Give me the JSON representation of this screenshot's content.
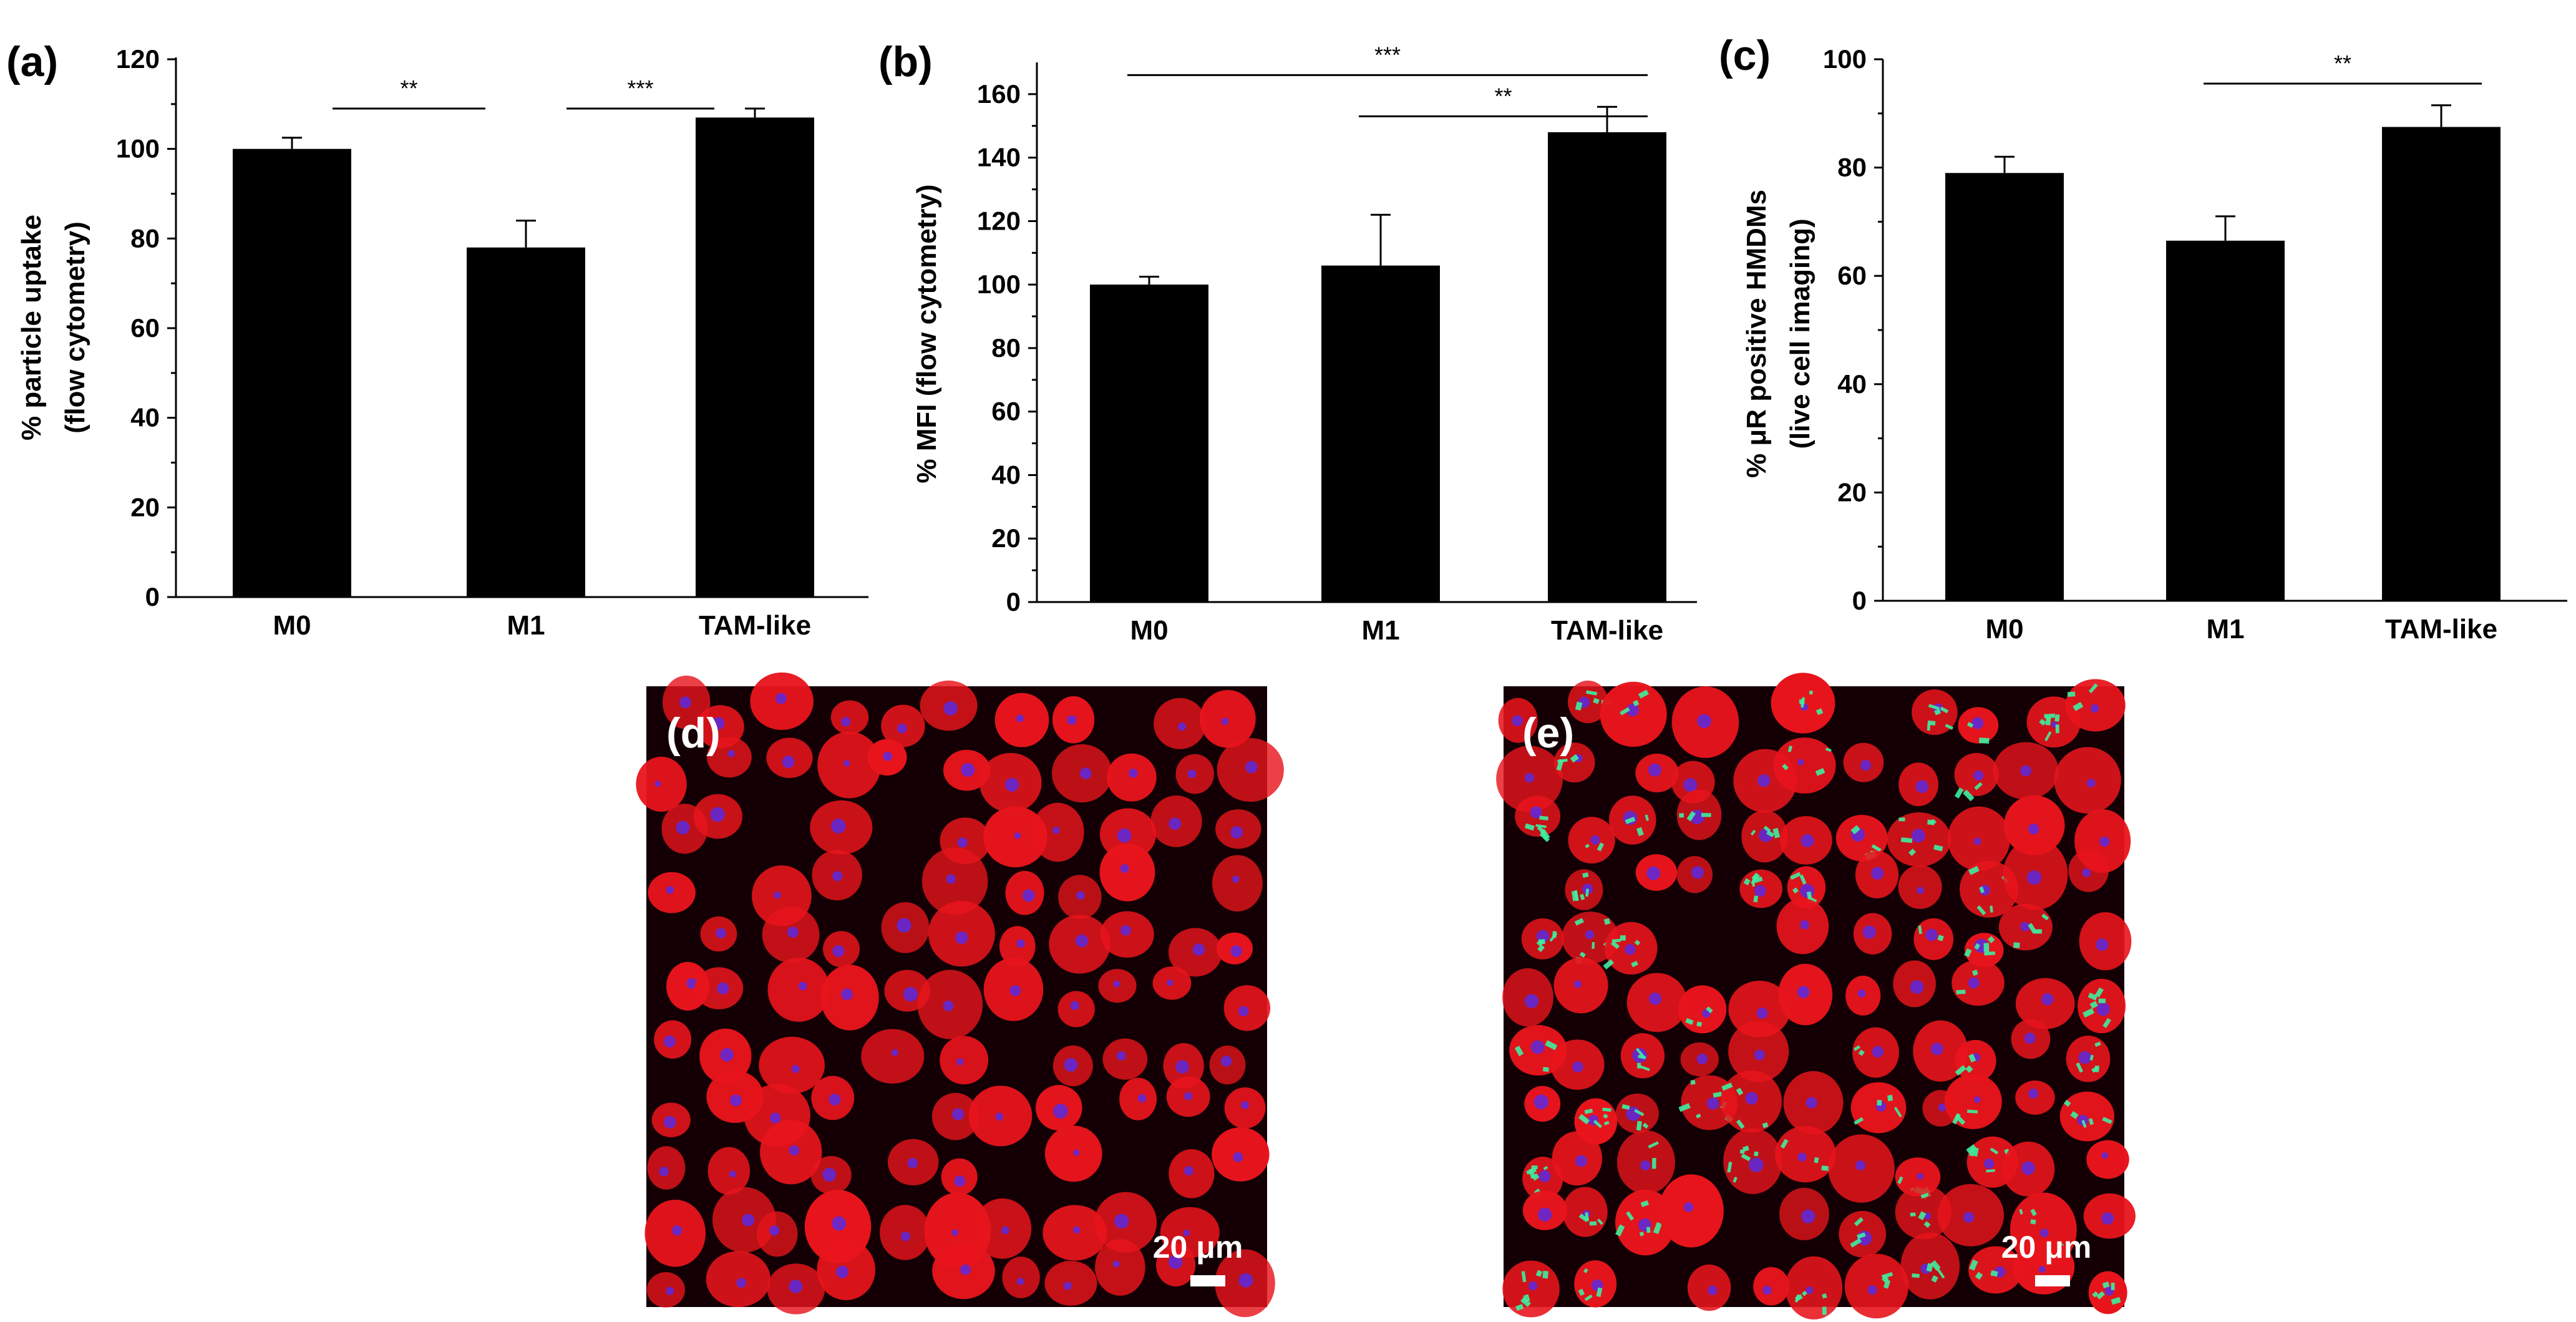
{
  "chart_data": [
    {
      "panel_label": "(a)",
      "type": "bar",
      "categories": [
        "M0",
        "M1",
        "TAM-like"
      ],
      "values": [
        100,
        78,
        107
      ],
      "errors": [
        2.5,
        6,
        2
      ],
      "ylabel_lines": [
        "% particle uptake",
        "(flow cytometry)"
      ],
      "ylim": [
        0,
        120
      ],
      "yticks": [
        0,
        20,
        40,
        60,
        80,
        100,
        120
      ],
      "significance": [
        {
          "from": 0,
          "to": 1,
          "label": "**",
          "y": 109
        },
        {
          "from": 1,
          "to": 2,
          "label": "***",
          "y": 109
        }
      ]
    },
    {
      "panel_label": "(b)",
      "type": "bar",
      "categories": [
        "M0",
        "M1",
        "TAM-like"
      ],
      "values": [
        100,
        106,
        148
      ],
      "errors": [
        2.5,
        16,
        8
      ],
      "ylabel_lines": [
        "% MFI (flow cytometry)"
      ],
      "ylim": [
        0,
        170
      ],
      "yticks": [
        0,
        20,
        40,
        60,
        80,
        100,
        120,
        140,
        160
      ],
      "significance": [
        {
          "from": 0,
          "to": 2,
          "label": "***",
          "y": 166
        },
        {
          "from": 1,
          "to": 2,
          "label": "**",
          "y": 153
        }
      ]
    },
    {
      "panel_label": "(c)",
      "type": "bar",
      "categories": [
        "M0",
        "M1",
        "TAM-like"
      ],
      "values": [
        79,
        66.5,
        87.5
      ],
      "errors": [
        3,
        4.5,
        4
      ],
      "ylabel_lines": [
        "% μR positive HMDMs",
        "(live cell imaging)"
      ],
      "ylim": [
        0,
        100
      ],
      "yticks": [
        0,
        20,
        40,
        60,
        80,
        100
      ],
      "significance": [
        {
          "from": 1,
          "to": 2,
          "label": "**",
          "y": 95.5
        }
      ]
    }
  ],
  "micrographs": [
    {
      "panel_label": "(d)",
      "scale_bar_label": "20 μm",
      "background": "#140004",
      "cell_color": "#e8141c",
      "nucleus_color": "#5a2ae0"
    },
    {
      "panel_label": "(e)",
      "scale_bar_label": "20 μm",
      "background": "#140004",
      "cell_color": "#e8141c",
      "nucleus_color": "#5a2ae0",
      "particle_color": "#3cf0a0"
    }
  ]
}
